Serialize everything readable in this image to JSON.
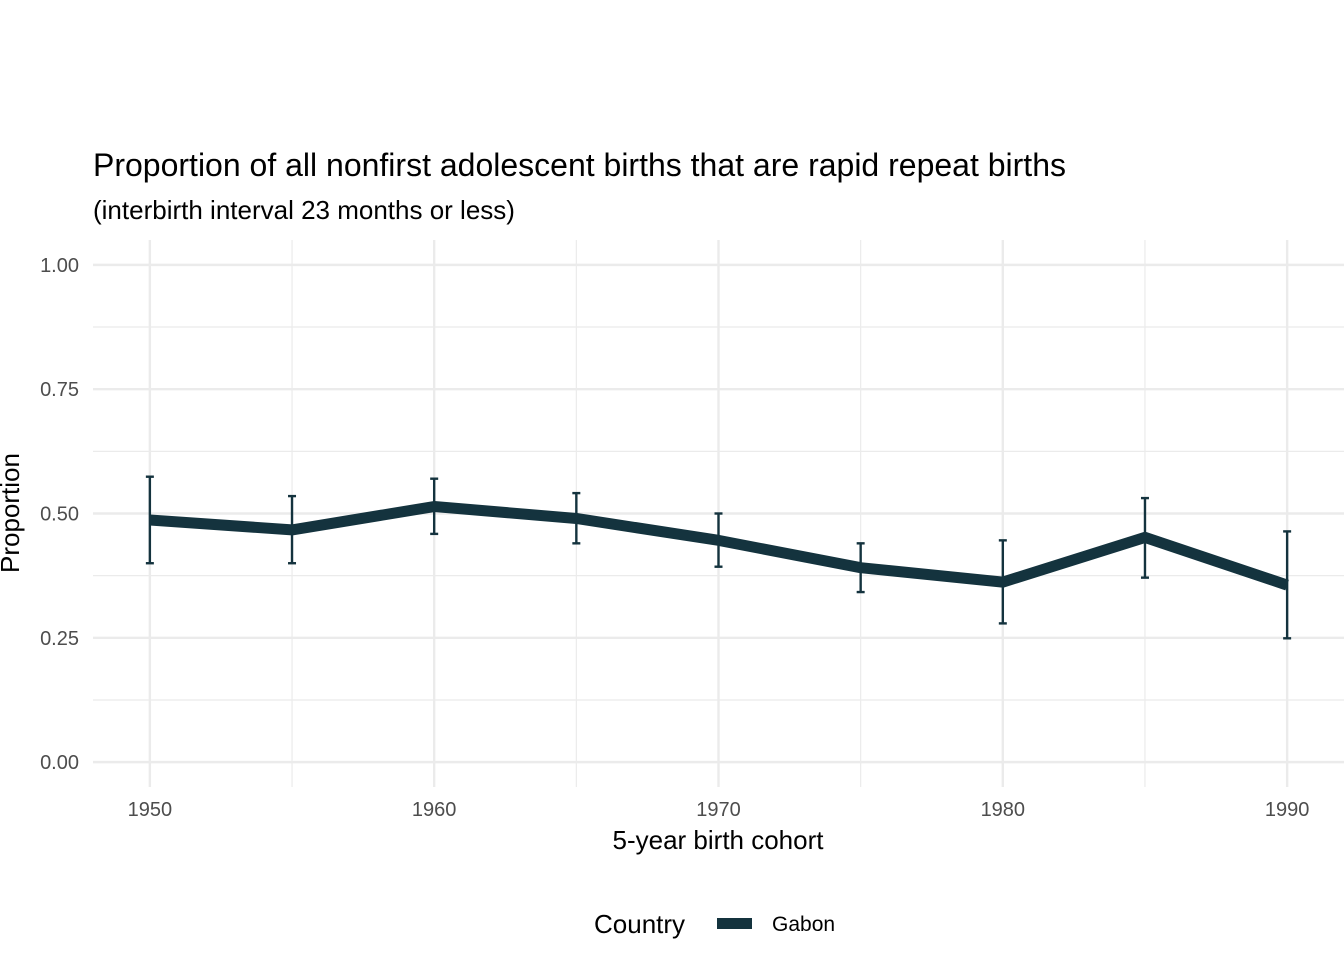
{
  "chart_data": {
    "type": "line",
    "title": "Proportion of all nonfirst adolescent births that are rapid repeat births",
    "subtitle": "(interbirth interval 23 months or less)",
    "xlabel": "5-year birth cohort",
    "ylabel": "Proportion",
    "xlim": [
      1948,
      1992
    ],
    "ylim": [
      -0.05,
      1.05
    ],
    "x_ticks": [
      1950,
      1960,
      1970,
      1980,
      1990
    ],
    "y_ticks": [
      0.0,
      0.25,
      0.5,
      0.75,
      1.0
    ],
    "y_tick_labels": [
      "0.00",
      "0.25",
      "0.50",
      "0.75",
      "1.00"
    ],
    "grid": true,
    "legend": {
      "title": "Country",
      "position": "bottom"
    },
    "series": [
      {
        "name": "Gabon",
        "color": "#14333e",
        "x": [
          1950,
          1955,
          1960,
          1965,
          1970,
          1975,
          1980,
          1985,
          1990
        ],
        "y": [
          0.487,
          0.467,
          0.514,
          0.49,
          0.446,
          0.391,
          0.362,
          0.452,
          0.356
        ],
        "lower": [
          0.4,
          0.4,
          0.459,
          0.44,
          0.393,
          0.342,
          0.279,
          0.371,
          0.249
        ],
        "upper": [
          0.574,
          0.535,
          0.57,
          0.541,
          0.5,
          0.44,
          0.446,
          0.531,
          0.464
        ]
      }
    ]
  }
}
